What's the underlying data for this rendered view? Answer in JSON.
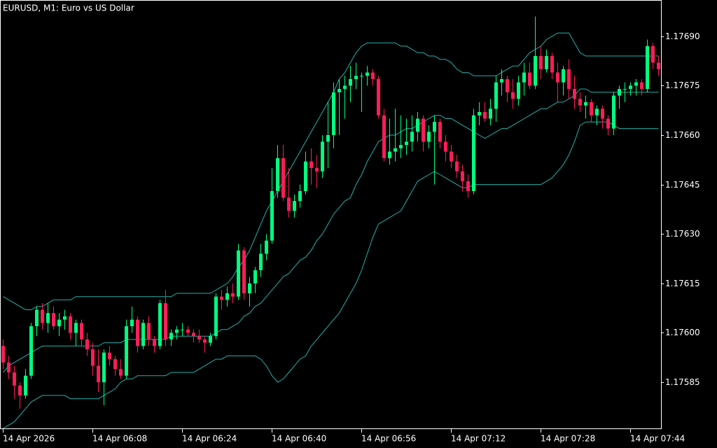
{
  "chart_data": {
    "type": "candlestick",
    "title": "EURUSD, M1:  Euro vs US Dollar",
    "up_color": "#00ff7f",
    "down_color": "#ff1d58",
    "grid": false,
    "ylim": [
      1.17571,
      1.17701
    ],
    "yticks": [
      1.17585,
      {
        "value": 1.176,
        "label": "1.17600"
      },
      1.17615,
      {
        "value": 1.1763,
        "label": "1.17630"
      },
      1.17645,
      {
        "value": 1.1766,
        "label": "1.17660"
      },
      1.17675,
      {
        "value": 1.1769,
        "label": "1.17690"
      }
    ],
    "categories": [
      "14 Apr 2026",
      null,
      null,
      null,
      null,
      null,
      null,
      null,
      null,
      null,
      null,
      null,
      null,
      null,
      null,
      null,
      "14 Apr 06:08",
      null,
      null,
      null,
      null,
      null,
      null,
      null,
      null,
      null,
      null,
      null,
      null,
      null,
      null,
      null,
      "14 Apr 06:24",
      null,
      null,
      null,
      null,
      null,
      null,
      null,
      null,
      null,
      null,
      null,
      null,
      null,
      null,
      null,
      "14 Apr 06:40",
      null,
      null,
      null,
      null,
      null,
      null,
      null,
      null,
      null,
      null,
      null,
      null,
      null,
      null,
      null,
      "14 Apr 06:56",
      null,
      null,
      null,
      null,
      null,
      null,
      null,
      null,
      null,
      null,
      null,
      null,
      null,
      null,
      null,
      "14 Apr 07:12",
      null,
      null,
      null,
      null,
      null,
      null,
      null,
      null,
      null,
      null,
      null,
      null,
      null,
      null,
      null,
      "14 Apr 07:28",
      null,
      null,
      null,
      null,
      null,
      null,
      null,
      null,
      null,
      null,
      null,
      null,
      null,
      null,
      null,
      "14 Apr 07:44",
      null,
      null,
      null,
      null,
      null
    ],
    "open": [
      1.17596,
      1.17591,
      1.17588,
      1.17584,
      1.17581,
      1.17587,
      1.17602,
      1.17607,
      1.17603,
      1.17606,
      1.17602,
      1.17604,
      1.17605,
      1.176,
      1.17603,
      1.17598,
      1.17595,
      1.1759,
      1.17585,
      1.17594,
      1.17592,
      1.17589,
      1.17587,
      1.17602,
      1.17604,
      1.17596,
      1.17603,
      1.17598,
      1.17596,
      1.17609,
      1.17598,
      1.176,
      1.17601,
      1.17601,
      1.176,
      1.17599,
      1.17598,
      1.17597,
      1.17599,
      1.17611,
      1.1761,
      1.17612,
      1.17611,
      1.17625,
      1.17612,
      1.17615,
      1.17619,
      1.17624,
      1.17628,
      1.17643,
      1.17653,
      1.17641,
      1.17637,
      1.1764,
      1.17643,
      1.17652,
      1.1765,
      1.17649,
      1.17658,
      1.1766,
      1.17673,
      1.17674,
      1.17675,
      1.17677,
      1.17678,
      1.17678,
      1.17679,
      1.17677,
      1.17666,
      1.17653,
      1.17655,
      1.17656,
      1.17657,
      1.17658,
      1.17661,
      1.17665,
      1.17658,
      1.17661,
      1.17664,
      1.17658,
      1.17655,
      1.17652,
      1.17649,
      1.17646,
      1.17643,
      1.17666,
      1.17667,
      1.17665,
      1.17668,
      1.17676,
      1.17677,
      1.17673,
      1.17671,
      1.17676,
      1.17679,
      1.17675,
      1.17684,
      1.1768,
      1.17684,
      1.17679,
      1.17676,
      1.1768,
      1.17674,
      1.17671,
      1.17669,
      1.1767,
      1.17666,
      1.17668,
      1.17665,
      1.17662,
      1.17672,
      1.17674,
      1.17674,
      1.17675,
      1.17676,
      1.17674,
      1.17687,
      1.17682
    ],
    "high": [
      1.17598,
      1.17593,
      1.1759,
      1.17585,
      1.17589,
      1.17603,
      1.17608,
      1.17609,
      1.17609,
      1.17608,
      1.17606,
      1.17607,
      1.17606,
      1.17604,
      1.17604,
      1.176,
      1.17597,
      1.17595,
      1.17595,
      1.17596,
      1.17593,
      1.17592,
      1.17604,
      1.17608,
      1.17605,
      1.17604,
      1.17605,
      1.17599,
      1.1761,
      1.17613,
      1.17601,
      1.17602,
      1.17603,
      1.17602,
      1.17601,
      1.17601,
      1.17599,
      1.176,
      1.17612,
      1.17613,
      1.17614,
      1.17615,
      1.17627,
      1.17626,
      1.17617,
      1.1762,
      1.17627,
      1.1763,
      1.1765,
      1.17657,
      1.17657,
      1.1765,
      1.17642,
      1.17645,
      1.17655,
      1.17656,
      1.17654,
      1.1766,
      1.1767,
      1.17676,
      1.17677,
      1.17678,
      1.17681,
      1.17682,
      1.17679,
      1.17681,
      1.1768,
      1.17678,
      1.17668,
      1.17665,
      1.17668,
      1.17666,
      1.17665,
      1.17666,
      1.17667,
      1.17666,
      1.17663,
      1.17666,
      1.17665,
      1.1766,
      1.17657,
      1.17654,
      1.17651,
      1.17648,
      1.17668,
      1.1767,
      1.1767,
      1.17671,
      1.17678,
      1.1768,
      1.17678,
      1.17677,
      1.17678,
      1.17682,
      1.17682,
      1.17696,
      1.17687,
      1.17686,
      1.17685,
      1.17682,
      1.17681,
      1.17683,
      1.17678,
      1.17673,
      1.17672,
      1.17671,
      1.17669,
      1.17669,
      1.17666,
      1.17673,
      1.17675,
      1.17676,
      1.17676,
      1.17677,
      1.17677,
      1.17689,
      1.17688,
      1.17684
    ],
    "low": [
      1.17589,
      1.17586,
      1.1758,
      1.17577,
      1.1758,
      1.17586,
      1.17599,
      1.17601,
      1.176,
      1.17601,
      1.17599,
      1.17601,
      1.17598,
      1.17596,
      1.17596,
      1.17593,
      1.17587,
      1.17582,
      1.17578,
      1.1759,
      1.17587,
      1.17586,
      1.17586,
      1.176,
      1.17594,
      1.17595,
      1.17596,
      1.17594,
      1.17595,
      1.17596,
      1.17596,
      1.17598,
      1.17599,
      1.17599,
      1.17597,
      1.17597,
      1.17594,
      1.17596,
      1.17598,
      1.17607,
      1.17608,
      1.17609,
      1.1761,
      1.1761,
      1.17608,
      1.17612,
      1.17617,
      1.17622,
      1.17627,
      1.17641,
      1.1764,
      1.17635,
      1.17635,
      1.17638,
      1.17642,
      1.17645,
      1.17644,
      1.17647,
      1.1765,
      1.17656,
      1.1766,
      1.17665,
      1.1767,
      1.17674,
      1.17667,
      1.17675,
      1.17675,
      1.17665,
      1.17652,
      1.17651,
      1.17652,
      1.17653,
      1.17654,
      1.17655,
      1.17658,
      1.17655,
      1.17656,
      1.17645,
      1.17656,
      1.17652,
      1.1765,
      1.17647,
      1.17643,
      1.17641,
      1.17642,
      1.17663,
      1.17664,
      1.17663,
      1.17664,
      1.17672,
      1.1767,
      1.17668,
      1.17669,
      1.17672,
      1.17674,
      1.17674,
      1.17677,
      1.17679,
      1.17677,
      1.1767,
      1.17672,
      1.17671,
      1.17668,
      1.17667,
      1.17665,
      1.17664,
      1.17663,
      1.17662,
      1.1766,
      1.1766,
      1.17668,
      1.1767,
      1.17672,
      1.17672,
      1.17672,
      1.17673,
      1.1768,
      1.17678
    ],
    "close": [
      1.17591,
      1.17588,
      1.17584,
      1.17581,
      1.17587,
      1.17602,
      1.17607,
      1.17603,
      1.17606,
      1.17602,
      1.17604,
      1.17605,
      1.176,
      1.17603,
      1.17598,
      1.17595,
      1.1759,
      1.17585,
      1.17594,
      1.17592,
      1.17589,
      1.17587,
      1.17602,
      1.17604,
      1.17596,
      1.17603,
      1.17598,
      1.17596,
      1.17609,
      1.17598,
      1.176,
      1.17601,
      1.17601,
      1.176,
      1.17599,
      1.17598,
      1.17597,
      1.17599,
      1.17611,
      1.1761,
      1.17612,
      1.17611,
      1.17625,
      1.17612,
      1.17615,
      1.17619,
      1.17624,
      1.17628,
      1.17643,
      1.17653,
      1.17641,
      1.17637,
      1.1764,
      1.17643,
      1.17652,
      1.1765,
      1.17649,
      1.17658,
      1.1766,
      1.17673,
      1.17674,
      1.17675,
      1.17677,
      1.17678,
      1.17678,
      1.17679,
      1.17677,
      1.17666,
      1.17653,
      1.17655,
      1.17656,
      1.17657,
      1.17658,
      1.17661,
      1.17665,
      1.17658,
      1.17661,
      1.17664,
      1.17658,
      1.17655,
      1.17652,
      1.17649,
      1.17646,
      1.17643,
      1.17666,
      1.17667,
      1.17665,
      1.17668,
      1.17676,
      1.17677,
      1.17673,
      1.17671,
      1.17676,
      1.17679,
      1.17675,
      1.17684,
      1.1768,
      1.17684,
      1.17679,
      1.17676,
      1.1768,
      1.17674,
      1.17671,
      1.17669,
      1.1767,
      1.17666,
      1.17668,
      1.17665,
      1.17662,
      1.17672,
      1.17674,
      1.17674,
      1.17675,
      1.17676,
      1.17674,
      1.17687,
      1.17682,
      1.1768
    ],
    "bands": {
      "color": "#20b2aa",
      "upper": [
        1.17611,
        1.1761,
        1.17609,
        1.17608,
        1.17607,
        1.17607,
        1.17608,
        1.17608,
        1.17609,
        1.1761,
        1.1761,
        1.1761,
        1.1761,
        1.17611,
        1.17611,
        1.17611,
        1.17611,
        1.17611,
        1.17611,
        1.17611,
        1.17611,
        1.17611,
        1.17611,
        1.17611,
        1.17611,
        1.17611,
        1.17611,
        1.17611,
        1.17611,
        1.17611,
        1.17611,
        1.17612,
        1.17612,
        1.17612,
        1.17612,
        1.17612,
        1.17612,
        1.17612,
        1.17613,
        1.17614,
        1.17615,
        1.17617,
        1.1762,
        1.17622,
        1.17625,
        1.17629,
        1.17633,
        1.17637,
        1.1764,
        1.17643,
        1.17646,
        1.17649,
        1.17652,
        1.17655,
        1.17658,
        1.17661,
        1.17664,
        1.17667,
        1.1767,
        1.17673,
        1.17677,
        1.17679,
        1.17682,
        1.17685,
        1.17687,
        1.17688,
        1.17688,
        1.17688,
        1.17688,
        1.17688,
        1.17688,
        1.17687,
        1.17687,
        1.17686,
        1.17685,
        1.17685,
        1.17684,
        1.17684,
        1.17683,
        1.17683,
        1.17682,
        1.1768,
        1.17679,
        1.17679,
        1.17678,
        1.17678,
        1.17678,
        1.17678,
        1.17678,
        1.17679,
        1.1768,
        1.17681,
        1.17681,
        1.17683,
        1.17685,
        1.17686,
        1.17687,
        1.17689,
        1.1769,
        1.17691,
        1.17691,
        1.17691,
        1.17688,
        1.17685,
        1.17684,
        1.17684,
        1.17684,
        1.17684,
        1.17684,
        1.17684,
        1.17684,
        1.17684,
        1.17684,
        1.17684,
        1.17684,
        1.17684,
        1.17684,
        1.17684
      ],
      "middle": [
        1.17588,
        1.1759,
        1.17591,
        1.17592,
        1.17593,
        1.17594,
        1.17595,
        1.17596,
        1.17596,
        1.17596,
        1.17596,
        1.17596,
        1.17596,
        1.17596,
        1.17596,
        1.17596,
        1.17596,
        1.17596,
        1.17597,
        1.17597,
        1.17597,
        1.17597,
        1.17598,
        1.17598,
        1.17598,
        1.17598,
        1.17598,
        1.17598,
        1.17598,
        1.17598,
        1.17599,
        1.17599,
        1.17599,
        1.17599,
        1.17599,
        1.17599,
        1.17599,
        1.17599,
        1.176,
        1.17601,
        1.17601,
        1.17602,
        1.17603,
        1.17605,
        1.17606,
        1.17608,
        1.17609,
        1.17611,
        1.17613,
        1.17615,
        1.17617,
        1.17618,
        1.1762,
        1.17622,
        1.17623,
        1.17625,
        1.17628,
        1.1763,
        1.17633,
        1.17636,
        1.17638,
        1.1764,
        1.17641,
        1.17645,
        1.17648,
        1.17652,
        1.17655,
        1.17658,
        1.17659,
        1.1766,
        1.1766,
        1.17661,
        1.17662,
        1.17662,
        1.17663,
        1.17664,
        1.17665,
        1.17666,
        1.17666,
        1.17665,
        1.17665,
        1.17664,
        1.17663,
        1.17662,
        1.17661,
        1.1766,
        1.17659,
        1.1766,
        1.17661,
        1.17662,
        1.17662,
        1.17663,
        1.17664,
        1.17665,
        1.17666,
        1.17667,
        1.17668,
        1.17668,
        1.17669,
        1.1767,
        1.1767,
        1.17671,
        1.17672,
        1.17674,
        1.17674,
        1.17673,
        1.17673,
        1.17673,
        1.17673,
        1.17673,
        1.17673,
        1.17673,
        1.17673,
        1.17673,
        1.17673,
        1.17673,
        1.17673,
        1.17673
      ],
      "lower": [
        1.17571,
        1.17572,
        1.17573,
        1.17575,
        1.17577,
        1.17579,
        1.1758,
        1.17581,
        1.17581,
        1.17581,
        1.17581,
        1.17581,
        1.1758,
        1.1758,
        1.1758,
        1.1758,
        1.1758,
        1.1758,
        1.17581,
        1.17582,
        1.17583,
        1.17585,
        1.17586,
        1.17586,
        1.17587,
        1.17587,
        1.17587,
        1.17587,
        1.17587,
        1.17587,
        1.17588,
        1.17588,
        1.17588,
        1.17588,
        1.17588,
        1.17589,
        1.1759,
        1.17591,
        1.17592,
        1.17592,
        1.17593,
        1.17593,
        1.17593,
        1.17593,
        1.17593,
        1.17593,
        1.17592,
        1.1759,
        1.17587,
        1.17585,
        1.17586,
        1.17588,
        1.1759,
        1.17592,
        1.17593,
        1.17596,
        1.17598,
        1.176,
        1.17602,
        1.17604,
        1.17606,
        1.17609,
        1.17612,
        1.17615,
        1.17619,
        1.17624,
        1.17629,
        1.17633,
        1.17634,
        1.17635,
        1.17636,
        1.17637,
        1.1764,
        1.17643,
        1.17646,
        1.17647,
        1.17648,
        1.17649,
        1.17648,
        1.17647,
        1.17646,
        1.17645,
        1.17644,
        1.17644,
        1.17645,
        1.17645,
        1.17645,
        1.17645,
        1.17645,
        1.17645,
        1.17645,
        1.17645,
        1.17645,
        1.17645,
        1.17645,
        1.17645,
        1.17645,
        1.17646,
        1.17647,
        1.17649,
        1.17651,
        1.17654,
        1.17658,
        1.17663,
        1.17664,
        1.17664,
        1.17664,
        1.17664,
        1.17664,
        1.17663,
        1.17662,
        1.17662,
        1.17662,
        1.17662,
        1.17662,
        1.17662,
        1.17662,
        1.17662
      ]
    }
  }
}
